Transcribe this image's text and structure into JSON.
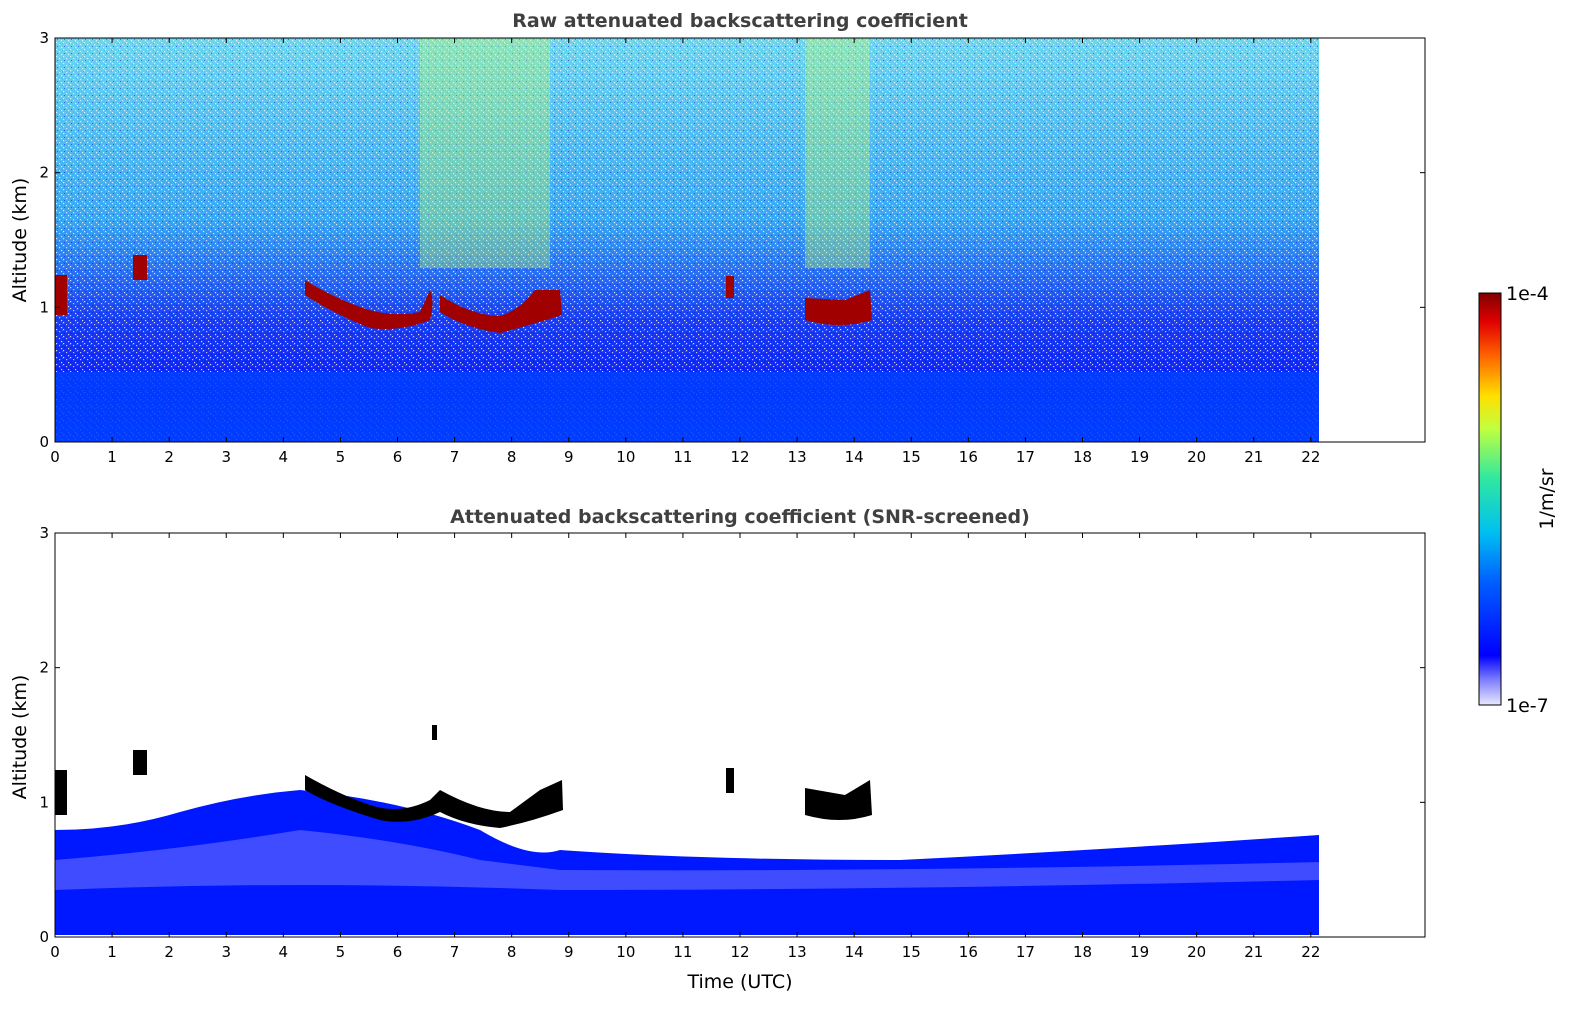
{
  "chart_data": [
    {
      "type": "heatmap",
      "title": "Raw attenuated backscattering coefficient",
      "xlabel": "",
      "ylabel": "Altitude (km)",
      "xlim": [
        0,
        24
      ],
      "ylim": [
        0,
        3
      ],
      "xticks": [
        "0",
        "1",
        "2",
        "3",
        "4",
        "5",
        "6",
        "7",
        "8",
        "9",
        "10",
        "11",
        "12",
        "13",
        "14",
        "15",
        "16",
        "17",
        "18",
        "19",
        "20",
        "21",
        "22"
      ],
      "yticks": [
        "0",
        "1",
        "2",
        "3"
      ],
      "data_end_time": 22.1,
      "features": [
        {
          "name": "near-surface boundary layer",
          "time": [
            0,
            22.1
          ],
          "altitude_km": [
            0,
            0.5
          ]
        },
        {
          "name": "cloud layer",
          "time": [
            4.5,
            6.5
          ],
          "altitude_km": [
            0.85,
            1.15
          ]
        },
        {
          "name": "cloud layer",
          "time": [
            6.8,
            9.0
          ],
          "altitude_km": [
            0.85,
            1.1
          ]
        },
        {
          "name": "cloud layer",
          "time": [
            13.1,
            14.5
          ],
          "altitude_km": [
            0.85,
            1.05
          ]
        },
        {
          "name": "cloud patches",
          "time": [
            0,
            1.7
          ],
          "altitude_km": [
            0.95,
            1.35
          ]
        }
      ]
    },
    {
      "type": "heatmap",
      "title": "Attenuated backscattering coefficient (SNR-screened)",
      "xlabel": "Time (UTC)",
      "ylabel": "Altitude (km)",
      "xlim": [
        0,
        24
      ],
      "ylim": [
        0,
        3
      ],
      "xticks": [
        "0",
        "1",
        "2",
        "3",
        "4",
        "5",
        "6",
        "7",
        "8",
        "9",
        "10",
        "11",
        "12",
        "13",
        "14",
        "15",
        "16",
        "17",
        "18",
        "19",
        "20",
        "21",
        "22"
      ],
      "yticks": [
        "0",
        "1",
        "2",
        "3"
      ],
      "data_end_time": 22.1,
      "features": [
        {
          "name": "screened boundary layer",
          "time": [
            0,
            22.1
          ],
          "altitude_km": [
            0,
            0.6
          ]
        },
        {
          "name": "cloud layer",
          "time": [
            4.5,
            9.0
          ],
          "altitude_km": [
            0.85,
            1.15
          ]
        },
        {
          "name": "cloud layer",
          "time": [
            13.1,
            14.5
          ],
          "altitude_km": [
            0.85,
            1.05
          ]
        }
      ]
    }
  ],
  "colorbar": {
    "label": "1/m/sr",
    "max_label": "1e-4",
    "min_label": "1e-7",
    "scale": "log",
    "colors": [
      "#e8e8ff",
      "#0000ff",
      "#00a0ff",
      "#00e0c0",
      "#c0ff40",
      "#ffe000",
      "#ff6000",
      "#e00000",
      "#800000"
    ]
  }
}
